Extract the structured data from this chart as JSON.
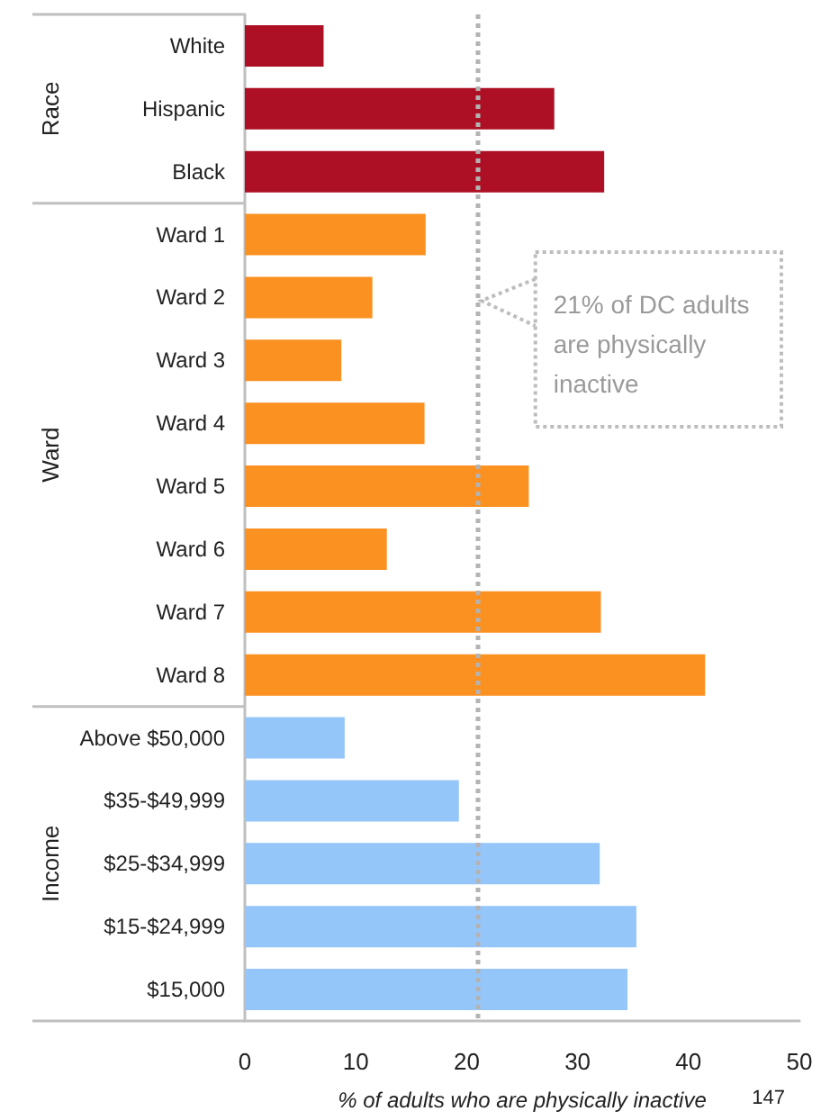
{
  "chart_data": {
    "type": "bar",
    "orientation": "horizontal",
    "categories": [
      "White",
      "Hispanic",
      "Black",
      "Ward 1",
      "Ward 2",
      "Ward 3",
      "Ward 4",
      "Ward 5",
      "Ward 6",
      "Ward 7",
      "Ward 8",
      "Above $50,000",
      "$35-$49,999",
      "$25-$34,999",
      "$15-$24,999",
      "$15,000"
    ],
    "series": [
      {
        "color": "#ad1024",
        "values": [
          7.1,
          27.9,
          32.4,
          null,
          null,
          null,
          null,
          null,
          null,
          null,
          null,
          null,
          null,
          null,
          null,
          null
        ]
      },
      {
        "color": "#fb9120",
        "values": [
          null,
          null,
          null,
          16.3,
          11.5,
          8.7,
          16.2,
          25.6,
          12.8,
          32.1,
          41.5,
          null,
          null,
          null,
          null,
          null
        ]
      },
      {
        "color": "#95c6fa",
        "values": [
          null,
          null,
          null,
          null,
          null,
          null,
          null,
          null,
          null,
          null,
          null,
          9.0,
          19.3,
          32.0,
          35.3,
          34.5
        ]
      }
    ],
    "xlabel": "% of adults who are physically inactive",
    "xlim": [
      0,
      50
    ],
    "xticks": [
      0,
      10,
      20,
      30,
      40,
      50
    ],
    "ref_lines": [
      {
        "axis": "x",
        "value": 21,
        "label": "21% of DC adults are physically inactive",
        "color": "#b3b3b3",
        "line_style": "dotted"
      }
    ],
    "annotations": [
      "Race",
      "Ward",
      "Income",
      "147"
    ]
  }
}
